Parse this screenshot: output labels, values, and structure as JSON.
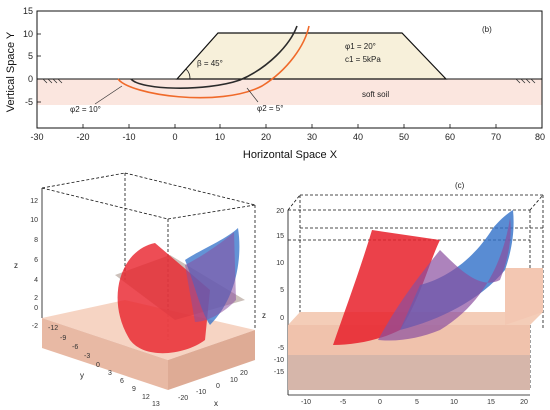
{
  "panel_b": {
    "label": "(b)",
    "xlabel": "Horizontal Space X",
    "ylabel": "Vertical Space Y",
    "x_ticks": [
      "-30",
      "-20",
      "-10",
      "0",
      "10",
      "20",
      "30",
      "40",
      "50",
      "60",
      "70",
      "80"
    ],
    "y_ticks": [
      "15",
      "10",
      "5",
      "0",
      "-5"
    ],
    "beta_label": "β = 45°",
    "phi1_label": "φ1 = 20°",
    "c1_label": "c1 = 5kPa",
    "phi2_left_label": "φ2 = 10°",
    "phi2_right_label": "φ2 = 5°",
    "soft_soil_label": "soft soil",
    "colors": {
      "slope_fill": "#f7f0da",
      "soil_fill": "#fbe6df",
      "curve_dark": "#2b2b2b",
      "curve_orange": "#f06a2a"
    }
  },
  "panel_left3d": {
    "z_axis_label": "z",
    "y_axis_label": "y",
    "x_axis_label": "x",
    "z_ticks": [
      "12",
      "10",
      "8",
      "6",
      "4",
      "2",
      "0",
      "-2"
    ],
    "y_ticks": [
      "-12",
      "-9",
      "-6",
      "-3",
      "0",
      "3",
      "6",
      "9",
      "12",
      "13"
    ],
    "x_ticks": [
      "-20",
      "-10",
      "0",
      "10",
      "20"
    ],
    "colors": {
      "red": "#e8202a",
      "blue": "#2f6fc8",
      "box": "#f4cdb8"
    }
  },
  "panel_right3d": {
    "label": "(c)",
    "z_axis_label": "z",
    "z_ticks": [
      "20",
      "15",
      "10",
      "5",
      "0",
      "-5",
      "-10",
      "-15"
    ],
    "x_ticks": [
      "-10",
      "-5",
      "0",
      "5",
      "10",
      "15",
      "20"
    ],
    "colors": {
      "red": "#e8202a",
      "blue": "#2f6fc8",
      "box": "#f4cdb8"
    }
  }
}
